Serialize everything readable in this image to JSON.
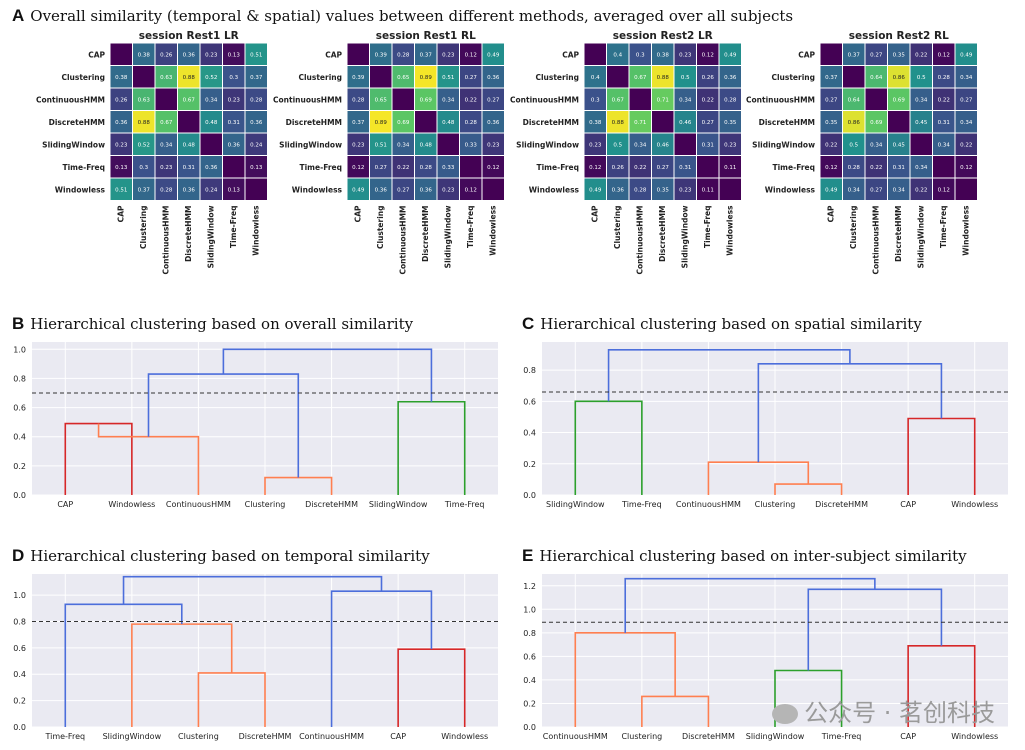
{
  "panelA": {
    "letter": "A",
    "title": "Overall similarity (temporal & spatial) values between different methods, averaged over all subjects",
    "methods": [
      "CAP",
      "Clustering",
      "ContinuousHMM",
      "DiscreteHMM",
      "SlidingWindow",
      "Time-Freq",
      "Windowless"
    ]
  },
  "chart_data": [
    {
      "type": "heatmap",
      "title": "session Rest1 LR",
      "labels": [
        "CAP",
        "Clustering",
        "ContinuousHMM",
        "DiscreteHMM",
        "SlidingWindow",
        "Time-Freq",
        "Windowless"
      ],
      "values": [
        [
          null,
          0.38,
          0.26,
          0.36,
          0.23,
          0.13,
          0.51
        ],
        [
          0.38,
          null,
          0.63,
          0.88,
          0.52,
          0.3,
          0.37
        ],
        [
          0.26,
          0.63,
          null,
          0.67,
          0.34,
          0.23,
          0.28
        ],
        [
          0.36,
          0.88,
          0.67,
          null,
          0.48,
          0.31,
          0.36
        ],
        [
          0.23,
          0.52,
          0.34,
          0.48,
          null,
          0.36,
          0.24
        ],
        [
          0.13,
          0.3,
          0.23,
          0.31,
          0.36,
          null,
          0.13
        ],
        [
          0.51,
          0.37,
          0.28,
          0.36,
          0.24,
          0.13,
          null
        ]
      ]
    },
    {
      "type": "heatmap",
      "title": "session Rest1 RL",
      "labels": [
        "CAP",
        "Clustering",
        "ContinuousHMM",
        "DiscreteHMM",
        "SlidingWindow",
        "Time-Freq",
        "Windowless"
      ],
      "values": [
        [
          null,
          0.39,
          0.28,
          0.37,
          0.23,
          0.12,
          0.49
        ],
        [
          0.39,
          null,
          0.65,
          0.89,
          0.51,
          0.27,
          0.36
        ],
        [
          0.28,
          0.65,
          null,
          0.69,
          0.34,
          0.22,
          0.27
        ],
        [
          0.37,
          0.89,
          0.69,
          null,
          0.48,
          0.28,
          0.36
        ],
        [
          0.23,
          0.51,
          0.34,
          0.48,
          null,
          0.33,
          0.23
        ],
        [
          0.12,
          0.27,
          0.22,
          0.28,
          0.33,
          null,
          0.12
        ],
        [
          0.49,
          0.36,
          0.27,
          0.36,
          0.23,
          0.12,
          null
        ]
      ]
    },
    {
      "type": "heatmap",
      "title": "session Rest2 LR",
      "labels": [
        "CAP",
        "Clustering",
        "ContinuousHMM",
        "DiscreteHMM",
        "SlidingWindow",
        "Time-Freq",
        "Windowless"
      ],
      "values": [
        [
          null,
          0.4,
          0.3,
          0.38,
          0.23,
          0.12,
          0.49
        ],
        [
          0.4,
          null,
          0.67,
          0.88,
          0.5,
          0.26,
          0.36
        ],
        [
          0.3,
          0.67,
          null,
          0.71,
          0.34,
          0.22,
          0.28
        ],
        [
          0.38,
          0.88,
          0.71,
          null,
          0.46,
          0.27,
          0.35
        ],
        [
          0.23,
          0.5,
          0.34,
          0.46,
          null,
          0.31,
          0.23
        ],
        [
          0.12,
          0.26,
          0.22,
          0.27,
          0.31,
          null,
          0.11
        ],
        [
          0.49,
          0.36,
          0.28,
          0.35,
          0.23,
          0.11,
          null
        ]
      ]
    },
    {
      "type": "heatmap",
      "title": "session Rest2 RL",
      "labels": [
        "CAP",
        "Clustering",
        "ContinuousHMM",
        "DiscreteHMM",
        "SlidingWindow",
        "Time-Freq",
        "Windowless"
      ],
      "values": [
        [
          null,
          0.37,
          0.27,
          0.35,
          0.22,
          0.12,
          0.49
        ],
        [
          0.37,
          null,
          0.64,
          0.86,
          0.5,
          0.28,
          0.34
        ],
        [
          0.27,
          0.64,
          null,
          0.69,
          0.34,
          0.22,
          0.27
        ],
        [
          0.35,
          0.86,
          0.69,
          null,
          0.45,
          0.31,
          0.34
        ],
        [
          0.22,
          0.5,
          0.34,
          0.45,
          null,
          0.34,
          0.22
        ],
        [
          0.12,
          0.28,
          0.22,
          0.31,
          0.34,
          null,
          0.12
        ],
        [
          0.49,
          0.34,
          0.27,
          0.34,
          0.22,
          0.12,
          null
        ]
      ]
    },
    {
      "type": "dendrogram",
      "letter": "B",
      "title": "Hierarchical clustering based on overall similarity",
      "ylim": [
        0,
        1.05
      ],
      "yticks": [
        0.0,
        0.2,
        0.4,
        0.6,
        0.8,
        1.0
      ],
      "threshold": 0.7,
      "leaves": [
        "CAP",
        "Windowless",
        "ContinuousHMM",
        "Clustering",
        "DiscreteHMM",
        "SlidingWindow",
        "Time-Freq"
      ],
      "links": [
        {
          "a": 0,
          "b": 1,
          "h": 0.49,
          "color": "#d62728"
        },
        {
          "a": 3,
          "b": 4,
          "h": 0.12,
          "color": "#ff7f50"
        },
        {
          "a": 2,
          "b": 7,
          "h": 0.4,
          "color": "#ff7f50"
        },
        {
          "a": 5,
          "b": 6,
          "h": 0.64,
          "color": "#2ca02c"
        },
        {
          "a": 8,
          "b": 9,
          "h": 0.83,
          "color": "#4c6edb"
        },
        {
          "a": 10,
          "b": 11,
          "h": 1.0,
          "color": "#4c6edb"
        }
      ]
    },
    {
      "type": "dendrogram",
      "letter": "C",
      "title": "Hierarchical clustering based on spatial similarity",
      "ylim": [
        0,
        0.98
      ],
      "yticks": [
        0.0,
        0.2,
        0.4,
        0.6,
        0.8
      ],
      "threshold": 0.66,
      "leaves": [
        "SlidingWindow",
        "Time-Freq",
        "ContinuousHMM",
        "Clustering",
        "DiscreteHMM",
        "CAP",
        "Windowless"
      ],
      "links": [
        {
          "a": 0,
          "b": 1,
          "h": 0.6,
          "color": "#2ca02c"
        },
        {
          "a": 3,
          "b": 4,
          "h": 0.07,
          "color": "#ff7f50"
        },
        {
          "a": 2,
          "b": 8,
          "h": 0.21,
          "color": "#ff7f50"
        },
        {
          "a": 5,
          "b": 6,
          "h": 0.49,
          "color": "#d62728"
        },
        {
          "a": 9,
          "b": 10,
          "h": 0.84,
          "color": "#4c6edb"
        },
        {
          "a": 7,
          "b": 11,
          "h": 0.93,
          "color": "#4c6edb"
        }
      ]
    },
    {
      "type": "dendrogram",
      "letter": "D",
      "title": "Hierarchical clustering based on temporal similarity",
      "ylim": [
        0,
        1.16
      ],
      "yticks": [
        0.0,
        0.2,
        0.4,
        0.6,
        0.8,
        1.0
      ],
      "threshold": 0.8,
      "leaves": [
        "Time-Freq",
        "SlidingWindow",
        "Clustering",
        "DiscreteHMM",
        "ContinuousHMM",
        "CAP",
        "Windowless"
      ],
      "links": [
        {
          "a": 2,
          "b": 3,
          "h": 0.41,
          "color": "#ff7f50"
        },
        {
          "a": 1,
          "b": 7,
          "h": 0.78,
          "color": "#ff7f50"
        },
        {
          "a": 0,
          "b": 8,
          "h": 0.93,
          "color": "#4c6edb"
        },
        {
          "a": 5,
          "b": 6,
          "h": 0.59,
          "color": "#d62728"
        },
        {
          "a": 4,
          "b": 10,
          "h": 1.03,
          "color": "#4c6edb"
        },
        {
          "a": 9,
          "b": 11,
          "h": 1.14,
          "color": "#4c6edb"
        }
      ]
    },
    {
      "type": "dendrogram",
      "letter": "E",
      "title": "Hierarchical clustering based on inter-subject similarity",
      "ylim": [
        0,
        1.3
      ],
      "yticks": [
        0.0,
        0.2,
        0.4,
        0.6,
        0.8,
        1.0,
        1.2
      ],
      "threshold": 0.89,
      "leaves": [
        "ContinuousHMM",
        "Clustering",
        "DiscreteHMM",
        "SlidingWindow",
        "Time-Freq",
        "CAP",
        "Windowless"
      ],
      "links": [
        {
          "a": 1,
          "b": 2,
          "h": 0.26,
          "color": "#ff7f50"
        },
        {
          "a": 0,
          "b": 7,
          "h": 0.8,
          "color": "#ff7f50"
        },
        {
          "a": 3,
          "b": 4,
          "h": 0.48,
          "color": "#2ca02c"
        },
        {
          "a": 5,
          "b": 6,
          "h": 0.69,
          "color": "#d62728"
        },
        {
          "a": 9,
          "b": 10,
          "h": 1.17,
          "color": "#4c6edb"
        },
        {
          "a": 8,
          "b": 11,
          "h": 1.26,
          "color": "#4c6edb"
        }
      ]
    }
  ],
  "watermark": "公众号 · 茗创科技"
}
